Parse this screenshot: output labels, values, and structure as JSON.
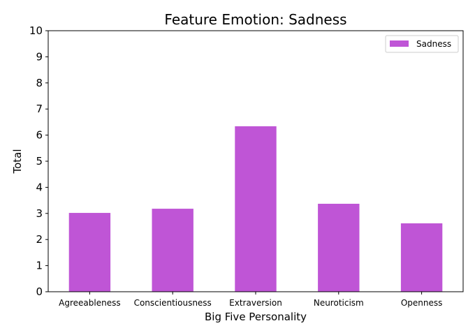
{
  "chart_data": {
    "type": "bar",
    "title": "Feature Emotion: Sadness",
    "xlabel": "Big Five Personality",
    "ylabel": "Total",
    "categories": [
      "Agreeableness",
      "Conscientiousness",
      "Extraversion",
      "Neuroticism",
      "Openness"
    ],
    "series": [
      {
        "name": "Sadness",
        "values": [
          3.02,
          3.18,
          6.34,
          3.37,
          2.62
        ]
      }
    ],
    "ylim": [
      0,
      10
    ],
    "yticks": [
      "0",
      "1",
      "2",
      "3",
      "4",
      "5",
      "6",
      "7",
      "8",
      "9",
      "10"
    ],
    "grid": false,
    "legend_position": "top-right",
    "colors": {
      "bar": "#bf55d6",
      "axis": "#000000"
    }
  }
}
